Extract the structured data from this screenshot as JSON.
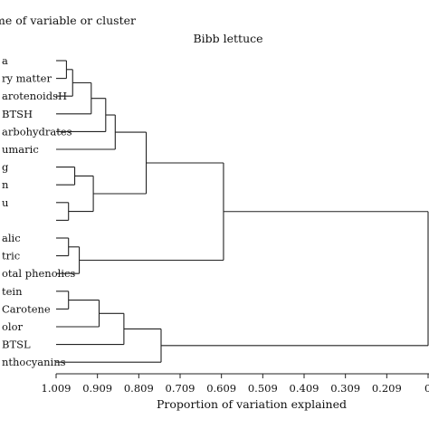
{
  "header": {
    "left_label": "me of variable or cluster",
    "subtitle": "Bibb lettuce"
  },
  "axis": {
    "label": "Proportion of variation explained",
    "ticks": [
      "1.009",
      "0.909",
      "0.809",
      "0.709",
      "0.609",
      "0.509",
      "0.409",
      "0.309",
      "0.209",
      "0."
    ],
    "range": [
      1.009,
      0.109
    ]
  },
  "leaves": [
    "a",
    "ry matter",
    "arotenoidsH",
    "BTSH",
    "arbohydrates",
    "umaric",
    "g",
    "n",
    "u",
    "",
    "alic",
    "tric",
    "otal phenolics",
    "tein",
    "Carotene",
    "olor",
    "BTSL",
    "nthocyanins"
  ],
  "chart_data": {
    "type": "dendrogram",
    "orientation": "horizontal",
    "leaf_count": 18,
    "merges": [
      {
        "id": "m1",
        "left": "L0",
        "right": "L1",
        "height": 0.984
      },
      {
        "id": "m2",
        "left": "m1",
        "right": "L2",
        "height": 0.969
      },
      {
        "id": "m3",
        "left": "m2",
        "right": "L3",
        "height": 0.924
      },
      {
        "id": "m4",
        "left": "m3",
        "right": "L4",
        "height": 0.889
      },
      {
        "id": "m5",
        "left": "m4",
        "right": "L5",
        "height": 0.866
      },
      {
        "id": "m6",
        "left": "L6",
        "right": "L7",
        "height": 0.964
      },
      {
        "id": "m7",
        "left": "L8",
        "right": "L9",
        "height": 0.979
      },
      {
        "id": "m8",
        "left": "m6",
        "right": "m7",
        "height": 0.919
      },
      {
        "id": "m9",
        "left": "m5",
        "right": "m8",
        "height": 0.791
      },
      {
        "id": "m10",
        "left": "L10",
        "right": "L11",
        "height": 0.979
      },
      {
        "id": "m11",
        "left": "m10",
        "right": "L12",
        "height": 0.953
      },
      {
        "id": "m12",
        "left": "m9",
        "right": "m11",
        "height": 0.604
      },
      {
        "id": "m13",
        "left": "L13",
        "right": "L14",
        "height": 0.979
      },
      {
        "id": "m14",
        "left": "m13",
        "right": "L15",
        "height": 0.905
      },
      {
        "id": "m15",
        "left": "m14",
        "right": "L16",
        "height": 0.845
      },
      {
        "id": "m16",
        "left": "m15",
        "right": "L17",
        "height": 0.755
      },
      {
        "id": "m17",
        "left": "m12",
        "right": "m16",
        "height": 0.109
      }
    ]
  }
}
